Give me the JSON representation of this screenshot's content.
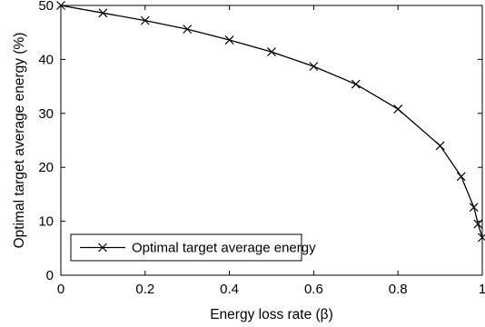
{
  "chart_data": {
    "type": "line",
    "xlabel": "Energy loss rate (β)",
    "ylabel": "Optimal target average energy (%)",
    "xlim": [
      0,
      1
    ],
    "ylim": [
      0,
      50
    ],
    "x_ticks": [
      "0",
      "0.2",
      "0.4",
      "0.6",
      "0.8",
      "1"
    ],
    "y_ticks": [
      "0",
      "10",
      "20",
      "30",
      "40",
      "50"
    ],
    "x_tick_values": [
      0,
      0.2,
      0.4,
      0.6,
      0.8,
      1
    ],
    "y_tick_values": [
      0,
      10,
      20,
      30,
      40,
      50
    ],
    "grid": false,
    "legend_position": "bottom-left",
    "series": [
      {
        "name": "Optimal target average energy",
        "marker": "x",
        "color": "#000000",
        "x": [
          0,
          0.1,
          0.2,
          0.3,
          0.4,
          0.5,
          0.6,
          0.7,
          0.8,
          0.9,
          0.95,
          0.98,
          0.99,
          1.0
        ],
        "y": [
          50,
          48.6,
          47.2,
          45.6,
          43.6,
          41.4,
          38.7,
          35.4,
          30.8,
          24.0,
          18.3,
          12.6,
          9.5,
          7.0
        ]
      }
    ]
  }
}
